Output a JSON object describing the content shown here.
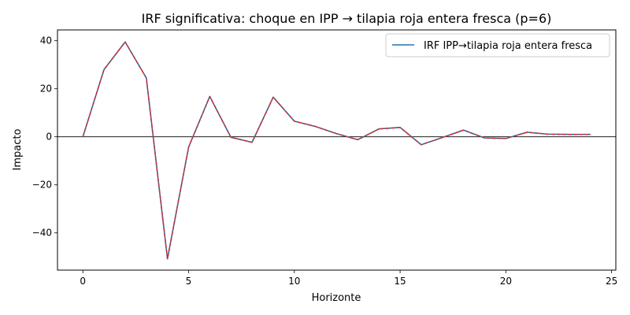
{
  "chart_data": {
    "type": "line",
    "title": "IRF significativa: choque en IPP → tilapia roja entera fresca (p=6)",
    "xlabel": "Horizonte",
    "ylabel": "Impacto",
    "xlim": [
      -1.2,
      25.2
    ],
    "ylim": [
      -55.5,
      44.5
    ],
    "xticks": [
      0,
      5,
      10,
      15,
      20,
      25
    ],
    "yticks": [
      -40,
      -20,
      0,
      20,
      40
    ],
    "ytick_labels": [
      "−40",
      "−20",
      "0",
      "20",
      "40"
    ],
    "grid": false,
    "zero_line": true,
    "legend_position": "top-right",
    "series": [
      {
        "name": "IRF IPP→tilapia roja entera fresca",
        "color": "#1f77b4",
        "x": [
          0,
          1,
          2,
          3,
          4,
          5,
          6,
          7,
          8,
          9,
          10,
          11,
          12,
          13,
          14,
          15,
          16,
          17,
          18,
          19,
          20,
          21,
          22,
          23,
          24
        ],
        "y": [
          0.0,
          28.0,
          39.5,
          24.5,
          -50.8,
          -4.3,
          16.8,
          -0.2,
          -2.3,
          16.5,
          6.5,
          4.3,
          1.3,
          -1.2,
          3.3,
          3.9,
          -3.3,
          -0.3,
          2.8,
          -0.5,
          -0.7,
          1.9,
          1.1,
          1.0,
          1.0
        ]
      },
      {
        "color": "#d62728",
        "dashed": true,
        "x": [
          0,
          1,
          2,
          3,
          4,
          5,
          6,
          7,
          8,
          9,
          10,
          11,
          12,
          13,
          14,
          15,
          16,
          17,
          18,
          19,
          20,
          21,
          22,
          23,
          24
        ],
        "y": [
          0.0,
          28.0,
          39.5,
          24.5,
          -50.8,
          -4.3,
          16.8,
          -0.2,
          -2.3,
          16.5,
          6.5,
          4.3,
          1.3,
          -1.2,
          3.3,
          3.9,
          -3.3,
          -0.3,
          2.8,
          -0.5,
          -0.7,
          1.9,
          1.1,
          1.0,
          1.0
        ]
      }
    ]
  }
}
